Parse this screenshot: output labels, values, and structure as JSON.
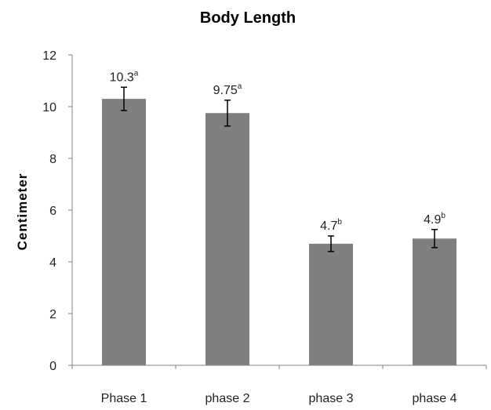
{
  "chart_data": {
    "type": "bar",
    "title": "Body Length",
    "xlabel": "",
    "ylabel": "Centimeter",
    "ylim": [
      0,
      12
    ],
    "yticks": [
      0,
      2,
      4,
      6,
      8,
      10,
      12
    ],
    "categories": [
      "Phase 1",
      "phase 2",
      "phase 3",
      "phase 4"
    ],
    "values": [
      10.3,
      9.75,
      4.7,
      4.9
    ],
    "errors": [
      0.45,
      0.5,
      0.3,
      0.35
    ],
    "value_labels": [
      "10.3",
      "9.75",
      "4.7",
      "4.9"
    ],
    "significance_letters": [
      "a",
      "a",
      "b",
      "b"
    ],
    "bar_color": "#7f7f7f",
    "grid": false,
    "legend": "none"
  }
}
